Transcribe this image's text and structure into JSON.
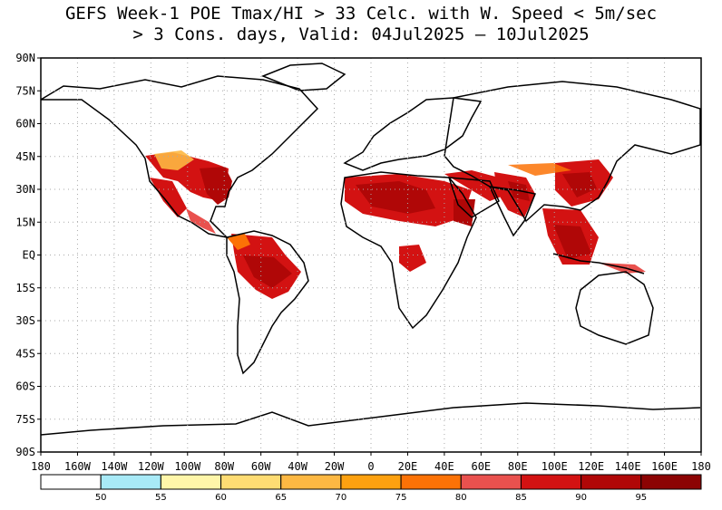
{
  "title": {
    "line1": "GEFS Week-1 POE Tmax/HI > 33 Celc. with W. Speed < 5m/sec",
    "line2": "> 3 Cons. days, Valid: 04Jul2025 – 10Jul2025"
  },
  "map": {
    "lat_ticks": [
      "90N",
      "75N",
      "60N",
      "45N",
      "30N",
      "15N",
      "EQ",
      "15S",
      "30S",
      "45S",
      "60S",
      "75S",
      "90S"
    ],
    "lon_ticks": [
      "180",
      "160W",
      "140W",
      "120W",
      "100W",
      "80W",
      "60W",
      "40W",
      "20W",
      "0",
      "20E",
      "40E",
      "60E",
      "80E",
      "100E",
      "120E",
      "140E",
      "160E",
      "180"
    ],
    "grid": true
  },
  "legend": {
    "labels": [
      "50",
      "55",
      "60",
      "65",
      "70",
      "75",
      "80",
      "85",
      "90",
      "95"
    ],
    "colors": [
      "#ffffff",
      "#a8eaf7",
      "#fff6a9",
      "#fedc73",
      "#fdb843",
      "#fda110",
      "#fc7206",
      "#e9514e",
      "#d31212",
      "#b00707",
      "#8c0303"
    ]
  },
  "colors": {
    "land_outline": "#000000",
    "grid": "#aaaaaa"
  }
}
